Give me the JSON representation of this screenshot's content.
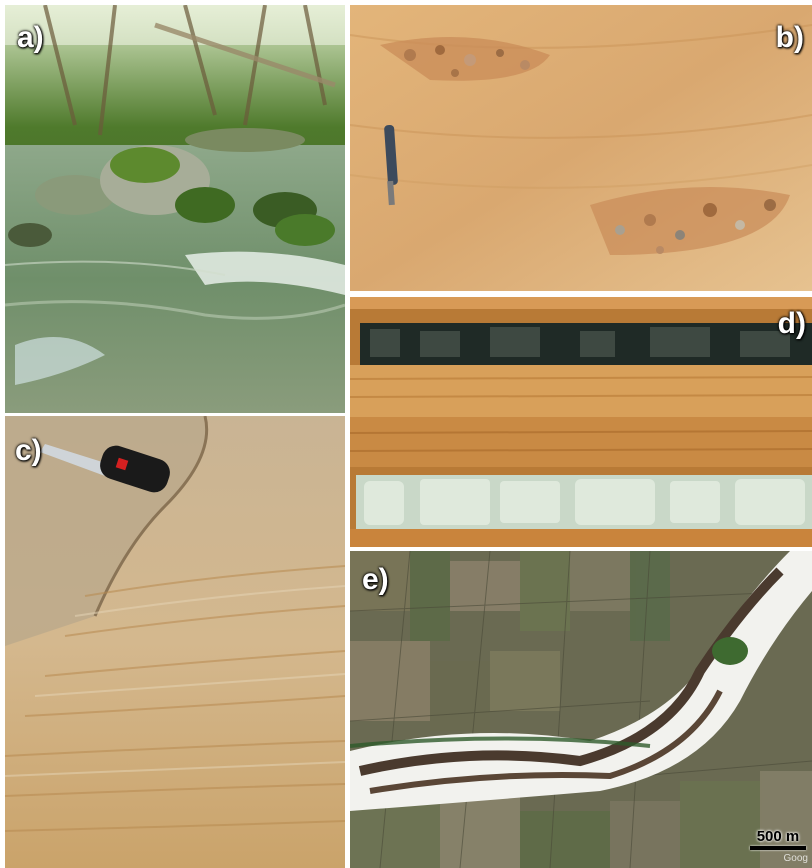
{
  "panels": {
    "a": {
      "label": "a)",
      "subject": "mountain stream with mossy boulders"
    },
    "b": {
      "label": "b)",
      "subject": "sandy outcrop with gravel lenses and hammer"
    },
    "c": {
      "label": "c)",
      "subject": "laminated sand with pocket knife"
    },
    "d": {
      "label": "d)",
      "subject": "core box with sediment cores"
    },
    "e": {
      "label": "e)",
      "subject": "aerial view of braided river"
    }
  },
  "scale_bar": {
    "label": "500 m"
  },
  "watermark": {
    "text": "Goog"
  },
  "colors": {
    "label_text": "#ffffff",
    "scale_text": "#000000",
    "sand": "#d9a870",
    "water": "#6f8f6a",
    "wood": "#c8843c",
    "river": "#4a3a2e"
  }
}
